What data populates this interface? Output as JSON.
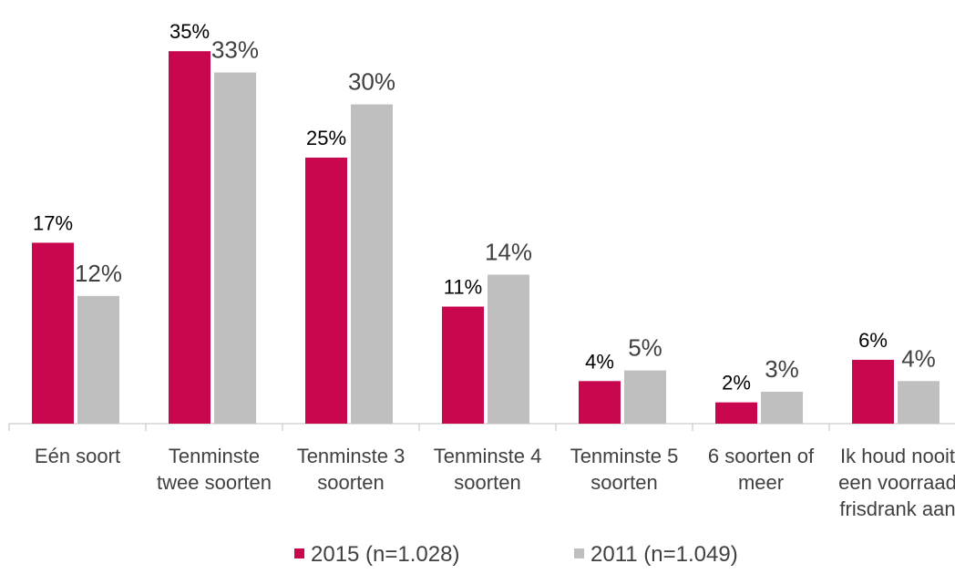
{
  "chart_data": {
    "type": "bar",
    "categories": [
      "Eén soort",
      "Tenminste twee soorten",
      "Tenminste 3 soorten",
      "Tenminste 4 soorten",
      "Tenminste 5 soorten",
      "6 soorten of meer",
      "Ik houd nooit een voorraad frisdrank aan"
    ],
    "series": [
      {
        "name": "2015 (n=1.028)",
        "color": "#c8074f",
        "values": [
          17,
          35,
          25,
          11,
          4,
          2,
          6
        ],
        "value_labels": [
          "17%",
          "35%",
          "25%",
          "11%",
          "4%",
          "2%",
          "6%"
        ]
      },
      {
        "name": "2011 (n=1.049)",
        "color": "#bfbfbf",
        "values": [
          12,
          33,
          30,
          14,
          5,
          3,
          4
        ],
        "value_labels": [
          "12%",
          "33%",
          "30%",
          "14%",
          "5%",
          "3%",
          "4%"
        ]
      }
    ],
    "legend": "bottom"
  }
}
